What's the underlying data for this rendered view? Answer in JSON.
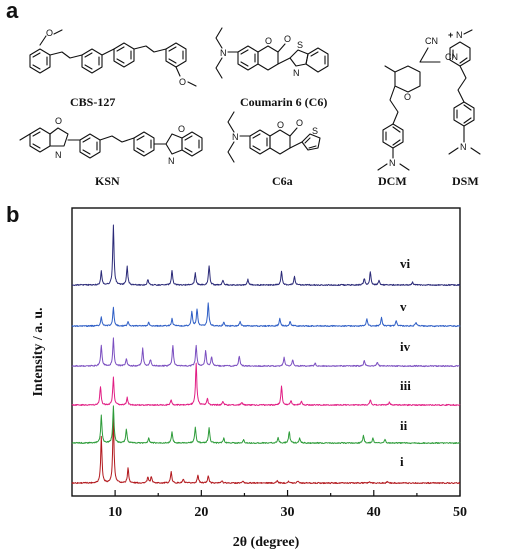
{
  "panels": {
    "a": "a",
    "b": "b"
  },
  "molecules": {
    "cbs127": "CBS-127",
    "coumarin6": "Coumarin 6 (C6)",
    "dcm": "DCM",
    "dsm": "DSM",
    "ksn": "KSN",
    "c6a": "C6a"
  },
  "atoms": {
    "o": "O",
    "n": "N",
    "s": "S",
    "cn": "CN",
    "plus": "+"
  },
  "chart_data": {
    "type": "line",
    "xlabel": "2θ (degree)",
    "ylabel": "Intensity / a. u.",
    "xlim": [
      5,
      50
    ],
    "xticks": [
      10,
      20,
      30,
      40,
      50
    ],
    "grid": false,
    "legend": "none",
    "series": [
      {
        "name": "i",
        "color": "#b2181d",
        "peaks": [
          [
            8.4,
            1.0
          ],
          [
            9.8,
            1.4
          ],
          [
            11.5,
            0.32
          ],
          [
            13.8,
            0.12
          ],
          [
            14.2,
            0.14
          ],
          [
            16.5,
            0.24
          ],
          [
            17.9,
            0.08
          ],
          [
            19.6,
            0.18
          ],
          [
            20.8,
            0.16
          ],
          [
            22.4,
            0.05
          ],
          [
            24.8,
            0.04
          ],
          [
            28.8,
            0.05
          ],
          [
            30.1,
            0.04
          ],
          [
            31.2,
            0.05
          ],
          [
            39.5,
            0.03
          ],
          [
            41.6,
            0.03
          ]
        ]
      },
      {
        "name": "ii",
        "color": "#2e9c3a",
        "peaks": [
          [
            8.4,
            0.6
          ],
          [
            9.8,
            0.8
          ],
          [
            11.3,
            0.3
          ],
          [
            13.9,
            0.1
          ],
          [
            16.6,
            0.24
          ],
          [
            19.3,
            0.34
          ],
          [
            20.9,
            0.34
          ],
          [
            22.6,
            0.1
          ],
          [
            24.9,
            0.07
          ],
          [
            28.9,
            0.12
          ],
          [
            30.2,
            0.24
          ],
          [
            31.4,
            0.1
          ],
          [
            38.8,
            0.16
          ],
          [
            39.9,
            0.1
          ],
          [
            41.3,
            0.08
          ]
        ]
      },
      {
        "name": "iii",
        "color": "#e11e84",
        "peaks": [
          [
            8.3,
            0.4
          ],
          [
            9.8,
            0.6
          ],
          [
            11.4,
            0.16
          ],
          [
            16.5,
            0.12
          ],
          [
            19.4,
            0.9
          ],
          [
            20.7,
            0.14
          ],
          [
            22.5,
            0.08
          ],
          [
            24.7,
            0.06
          ],
          [
            29.3,
            0.4
          ],
          [
            30.4,
            0.1
          ],
          [
            31.6,
            0.08
          ],
          [
            39.6,
            0.12
          ],
          [
            41.8,
            0.06
          ]
        ]
      },
      {
        "name": "iv",
        "color": "#7b4fc0",
        "peaks": [
          [
            8.4,
            0.46
          ],
          [
            9.8,
            0.6
          ],
          [
            11.3,
            0.16
          ],
          [
            13.2,
            0.38
          ],
          [
            14.1,
            0.14
          ],
          [
            16.7,
            0.44
          ],
          [
            19.4,
            0.44
          ],
          [
            20.5,
            0.32
          ],
          [
            21.2,
            0.2
          ],
          [
            24.4,
            0.22
          ],
          [
            29.6,
            0.18
          ],
          [
            30.6,
            0.14
          ],
          [
            33.2,
            0.06
          ],
          [
            38.9,
            0.12
          ],
          [
            40.4,
            0.08
          ]
        ]
      },
      {
        "name": "v",
        "color": "#2f5fc6",
        "peaks": [
          [
            8.4,
            0.2
          ],
          [
            9.8,
            0.4
          ],
          [
            11.5,
            0.1
          ],
          [
            13.9,
            0.08
          ],
          [
            16.6,
            0.16
          ],
          [
            18.9,
            0.3
          ],
          [
            19.5,
            0.36
          ],
          [
            20.8,
            0.5
          ],
          [
            22.6,
            0.08
          ],
          [
            24.5,
            0.1
          ],
          [
            29.1,
            0.16
          ],
          [
            30.3,
            0.1
          ],
          [
            39.2,
            0.16
          ],
          [
            40.9,
            0.18
          ],
          [
            42.6,
            0.12
          ],
          [
            44.9,
            0.08
          ]
        ]
      },
      {
        "name": "vi",
        "color": "#2b2a78",
        "peaks": [
          [
            8.4,
            0.3
          ],
          [
            9.8,
            1.3
          ],
          [
            11.4,
            0.4
          ],
          [
            13.8,
            0.12
          ],
          [
            16.6,
            0.32
          ],
          [
            19.3,
            0.26
          ],
          [
            20.9,
            0.42
          ],
          [
            22.5,
            0.1
          ],
          [
            25.4,
            0.12
          ],
          [
            29.3,
            0.3
          ],
          [
            30.8,
            0.18
          ],
          [
            38.9,
            0.14
          ],
          [
            39.6,
            0.28
          ],
          [
            40.6,
            0.1
          ],
          [
            44.5,
            0.06
          ]
        ]
      }
    ]
  }
}
